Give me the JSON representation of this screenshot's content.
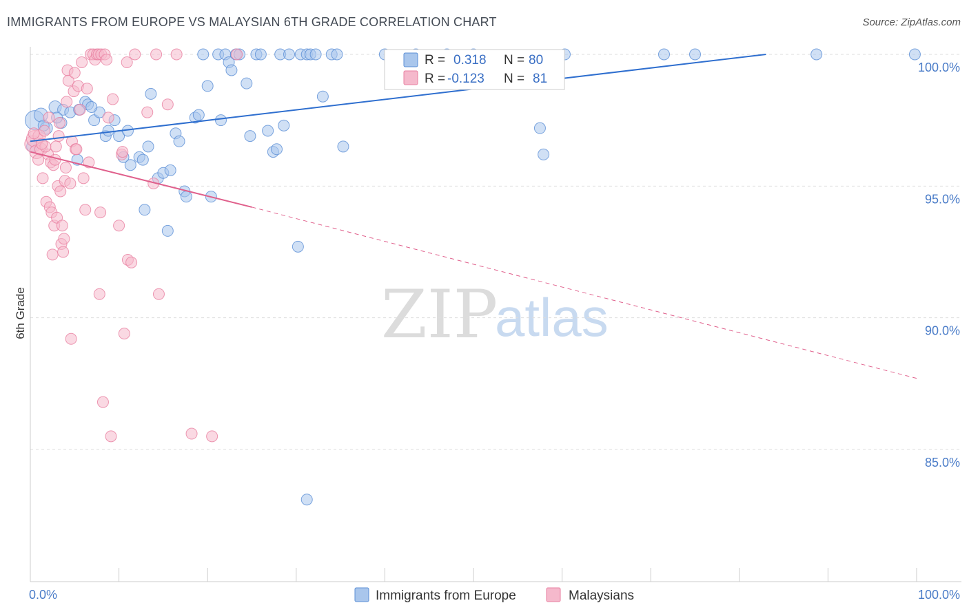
{
  "title": "IMMIGRANTS FROM EUROPE VS MALAYSIAN 6TH GRADE CORRELATION CHART",
  "source": "Source: ZipAtlas.com",
  "watermark": {
    "zip": "ZIP",
    "atlas": "atlas"
  },
  "colors": {
    "blue_fill": "#a9c6ec",
    "blue_stroke": "#5b8fd6",
    "blue_line": "#2f6fcf",
    "pink_fill": "#f5b9cc",
    "pink_stroke": "#e87fa0",
    "pink_line": "#e0608c",
    "grid": "#dddddd",
    "tick_label": "#4a7cc8"
  },
  "legend": {
    "rows": [
      {
        "r_label": "R =",
        "r_value": "0.318",
        "n_label": "N =",
        "n_value": "80"
      },
      {
        "r_label": "R =",
        "r_value": "-0.123",
        "n_label": "N =",
        "n_value": "81"
      }
    ]
  },
  "bottom_legend": [
    "Immigrants from Europe",
    "Malaysians"
  ],
  "chart_data": {
    "type": "scatter",
    "xlabel": "",
    "ylabel": "6th Grade",
    "xlim": [
      0,
      100
    ],
    "ylim": [
      80.5,
      100.8
    ],
    "x_tick_labels": [
      "0.0%",
      "100.0%"
    ],
    "y_ticks": [
      100,
      95,
      90,
      85
    ],
    "y_tick_labels": [
      "100.0%",
      "95.0%",
      "90.0%",
      "85.0%"
    ],
    "grid": true,
    "legend_position": "top-center",
    "series": [
      {
        "name": "Immigrants from Europe",
        "r": 0.318,
        "n": 80,
        "trend": {
          "x0": 0,
          "y0": 96.7,
          "x1": 83,
          "y1": 100.0,
          "dashed_to": null
        },
        "points": [
          [
            0.5,
            97.5,
            14
          ],
          [
            1.2,
            97.7,
            10
          ],
          [
            1.8,
            97.2,
            9
          ],
          [
            2.8,
            98.0,
            9
          ],
          [
            3.5,
            97.4,
            8
          ],
          [
            3.7,
            97.9,
            8
          ],
          [
            4.5,
            97.8,
            8
          ],
          [
            5.5,
            97.9,
            8
          ],
          [
            6.2,
            98.2,
            8
          ],
          [
            6.5,
            98.1,
            8
          ],
          [
            7.2,
            97.5,
            8
          ],
          [
            7.8,
            97.8,
            8
          ],
          [
            8.5,
            96.9,
            8
          ],
          [
            8.8,
            97.1,
            8
          ],
          [
            9.5,
            97.5,
            8
          ],
          [
            10,
            96.9,
            8
          ],
          [
            10.5,
            96.1,
            8
          ],
          [
            11,
            97.1,
            8
          ],
          [
            11.3,
            95.8,
            8
          ],
          [
            12.3,
            96.1,
            8
          ],
          [
            12.7,
            96.0,
            8
          ],
          [
            12.9,
            94.1,
            8
          ],
          [
            13.3,
            96.5,
            8
          ],
          [
            13.6,
            98.5,
            8
          ],
          [
            14.4,
            95.3,
            8
          ],
          [
            15,
            95.5,
            8
          ],
          [
            15.5,
            93.3,
            8
          ],
          [
            15.8,
            95.6,
            8
          ],
          [
            16.4,
            97.0,
            8
          ],
          [
            16.8,
            96.7,
            8
          ],
          [
            17.4,
            94.8,
            8
          ],
          [
            17.6,
            94.6,
            8
          ],
          [
            18.6,
            97.6,
            8
          ],
          [
            19,
            97.7,
            8
          ],
          [
            19.5,
            100.0,
            8
          ],
          [
            20,
            98.8,
            8
          ],
          [
            20.4,
            94.6,
            8
          ],
          [
            21.2,
            100.0,
            8
          ],
          [
            21.5,
            97.5,
            8
          ],
          [
            22,
            100.0,
            8
          ],
          [
            22.4,
            99.7,
            8
          ],
          [
            22.7,
            99.4,
            8
          ],
          [
            23.2,
            100.0,
            8
          ],
          [
            23.6,
            100.0,
            8
          ],
          [
            24.4,
            98.9,
            8
          ],
          [
            24.8,
            96.9,
            8
          ],
          [
            25.5,
            100.0,
            8
          ],
          [
            26,
            100.0,
            8
          ],
          [
            26.8,
            97.1,
            8
          ],
          [
            27.4,
            96.3,
            8
          ],
          [
            27.8,
            96.4,
            8
          ],
          [
            28.2,
            100.0,
            8
          ],
          [
            28.6,
            97.3,
            8
          ],
          [
            29.2,
            100.0,
            8
          ],
          [
            30.2,
            92.7,
            8
          ],
          [
            30.5,
            100.0,
            8
          ],
          [
            31.2,
            100.0,
            8
          ],
          [
            31.6,
            100.0,
            8
          ],
          [
            32.2,
            100.0,
            8
          ],
          [
            33,
            98.4,
            8
          ],
          [
            34,
            100.0,
            8
          ],
          [
            34.6,
            100.0,
            8
          ],
          [
            35.3,
            96.5,
            8
          ],
          [
            31.2,
            83.1,
            8
          ],
          [
            40,
            100.0,
            8
          ],
          [
            43.5,
            100.0,
            8
          ],
          [
            47,
            100.0,
            8
          ],
          [
            50,
            100.0,
            8
          ],
          [
            57.5,
            97.2,
            8
          ],
          [
            57.9,
            96.2,
            8
          ],
          [
            60.3,
            100.0,
            8
          ],
          [
            71.5,
            100.0,
            8
          ],
          [
            75,
            100.0,
            8
          ],
          [
            88.7,
            100.0,
            8
          ],
          [
            99.8,
            100.0,
            8
          ],
          [
            0.2,
            96.5,
            8
          ],
          [
            1.5,
            97.3,
            8
          ],
          [
            3.0,
            97.6,
            8
          ],
          [
            5.3,
            96.0,
            8
          ],
          [
            6.9,
            98.0,
            8
          ]
        ]
      },
      {
        "name": "Malaysians",
        "r": -0.123,
        "n": 81,
        "trend": {
          "x0": 0,
          "y0": 96.3,
          "x1": 25,
          "y1": 94.2,
          "dashed_to": {
            "x": 100,
            "y": 87.7
          }
        },
        "points": [
          [
            0.3,
            96.6,
            12
          ],
          [
            0.5,
            96.8,
            12
          ],
          [
            0.7,
            96.3,
            10
          ],
          [
            1.0,
            96.9,
            9
          ],
          [
            1.2,
            96.4,
            9
          ],
          [
            1.4,
            95.3,
            8
          ],
          [
            1.6,
            97.1,
            8
          ],
          [
            1.8,
            94.4,
            8
          ],
          [
            2.0,
            96.2,
            8
          ],
          [
            2.2,
            94.2,
            8
          ],
          [
            2.3,
            95.9,
            8
          ],
          [
            2.4,
            94.0,
            8
          ],
          [
            2.5,
            92.4,
            8
          ],
          [
            2.6,
            95.8,
            8
          ],
          [
            2.7,
            93.5,
            8
          ],
          [
            2.9,
            96.5,
            8
          ],
          [
            3.0,
            93.8,
            8
          ],
          [
            3.1,
            95.0,
            8
          ],
          [
            3.2,
            96.9,
            8
          ],
          [
            3.3,
            97.4,
            8
          ],
          [
            3.4,
            94.8,
            8
          ],
          [
            3.5,
            92.8,
            8
          ],
          [
            3.6,
            93.5,
            8
          ],
          [
            3.7,
            92.5,
            8
          ],
          [
            3.8,
            93.0,
            8
          ],
          [
            3.9,
            95.2,
            8
          ],
          [
            4.1,
            98.2,
            8
          ],
          [
            4.2,
            99.4,
            8
          ],
          [
            4.3,
            99.0,
            8
          ],
          [
            4.5,
            95.1,
            8
          ],
          [
            4.6,
            89.2,
            8
          ],
          [
            4.7,
            96.7,
            8
          ],
          [
            4.9,
            98.6,
            8
          ],
          [
            5.0,
            99.3,
            8
          ],
          [
            5.1,
            96.4,
            8
          ],
          [
            5.2,
            96.4,
            8
          ],
          [
            5.4,
            98.8,
            8
          ],
          [
            5.6,
            97.9,
            8
          ],
          [
            5.8,
            99.7,
            8
          ],
          [
            6.0,
            95.3,
            8
          ],
          [
            6.2,
            94.1,
            8
          ],
          [
            6.4,
            98.7,
            8
          ],
          [
            6.8,
            100.0,
            8
          ],
          [
            7.1,
            100.0,
            8
          ],
          [
            7.3,
            99.8,
            8
          ],
          [
            7.5,
            100.0,
            8
          ],
          [
            7.7,
            100.0,
            8
          ],
          [
            7.8,
            90.9,
            8
          ],
          [
            7.9,
            94.0,
            8
          ],
          [
            8.0,
            100.0,
            8
          ],
          [
            8.2,
            86.8,
            8
          ],
          [
            8.4,
            100.0,
            8
          ],
          [
            8.6,
            99.8,
            8
          ],
          [
            8.8,
            97.6,
            8
          ],
          [
            9.1,
            85.5,
            8
          ],
          [
            9.3,
            98.3,
            8
          ],
          [
            10.0,
            93.5,
            8
          ],
          [
            10.3,
            96.2,
            8
          ],
          [
            10.4,
            96.3,
            8
          ],
          [
            10.6,
            89.4,
            8
          ],
          [
            10.9,
            99.7,
            8
          ],
          [
            11.0,
            92.2,
            8
          ],
          [
            11.4,
            92.1,
            8
          ],
          [
            11.8,
            100.0,
            8
          ],
          [
            13.2,
            97.8,
            8
          ],
          [
            13.9,
            95.1,
            8
          ],
          [
            14.2,
            100.0,
            8
          ],
          [
            14.5,
            90.9,
            8
          ],
          [
            15.5,
            98.1,
            8
          ],
          [
            16.5,
            100.0,
            8
          ],
          [
            18.2,
            85.6,
            8
          ],
          [
            20.5,
            85.5,
            8
          ],
          [
            23.3,
            100.0,
            8
          ],
          [
            0.9,
            96.0,
            8
          ],
          [
            1.7,
            96.5,
            8
          ],
          [
            2.1,
            97.6,
            8
          ],
          [
            2.8,
            96.0,
            8
          ],
          [
            4.0,
            95.7,
            8
          ],
          [
            6.6,
            95.9,
            8
          ],
          [
            0.4,
            97.0,
            8
          ],
          [
            1.3,
            96.6,
            8
          ]
        ]
      }
    ]
  }
}
